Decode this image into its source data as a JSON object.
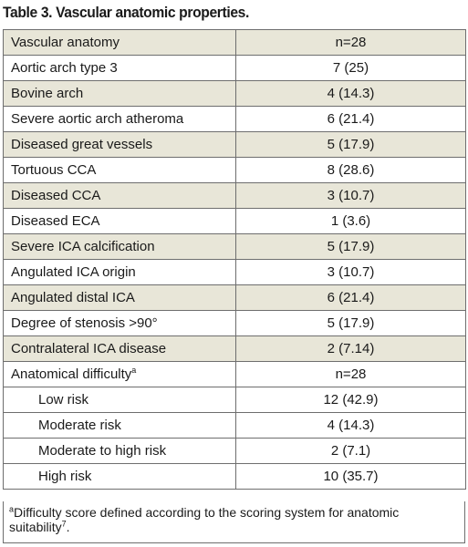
{
  "caption": "Table 3. Vascular anatomic properties.",
  "rows": [
    {
      "label": "Vascular anatomy",
      "value": "n=28",
      "shade": true
    },
    {
      "label": "Aortic arch type 3",
      "value": "7 (25)",
      "shade": false
    },
    {
      "label": "Bovine arch",
      "value": "4 (14.3)",
      "shade": true
    },
    {
      "label": "Severe aortic arch atheroma",
      "value": "6 (21.4)",
      "shade": false
    },
    {
      "label": "Diseased great vessels",
      "value": "5 (17.9)",
      "shade": true
    },
    {
      "label": "Tortuous CCA",
      "value": "8 (28.6)",
      "shade": false
    },
    {
      "label": "Diseased CCA",
      "value": "3 (10.7)",
      "shade": true
    },
    {
      "label": "Diseased ECA",
      "value": "1 (3.6)",
      "shade": false
    },
    {
      "label": "Severe ICA calcification",
      "value": "5 (17.9)",
      "shade": true
    },
    {
      "label": "Angulated ICA origin",
      "value": "3 (10.7)",
      "shade": false
    },
    {
      "label": "Angulated distal ICA",
      "value": "6 (21.4)",
      "shade": true
    },
    {
      "label": "Degree of stenosis >90°",
      "value": "5 (17.9)",
      "shade": false
    },
    {
      "label": "Contralateral ICA disease",
      "value": "2 (7.14)",
      "shade": true
    },
    {
      "label": "Anatomical difficulty",
      "sup": "a",
      "value": "n=28",
      "shade": false
    },
    {
      "label": "Low risk",
      "value": "12 (42.9)",
      "shade": false,
      "sub": true
    },
    {
      "label": "Moderate risk",
      "value": "4 (14.3)",
      "shade": false,
      "sub": true
    },
    {
      "label": "Moderate to high risk",
      "value": "2 (7.1)",
      "shade": false,
      "sub": true
    },
    {
      "label": "High risk",
      "value": "10 (35.7)",
      "shade": false,
      "sub": true
    }
  ],
  "footnote": {
    "mark": "a",
    "text": "Difficulty score defined according to the scoring system for anatomic suitability",
    "ref": "7",
    "end": "."
  }
}
